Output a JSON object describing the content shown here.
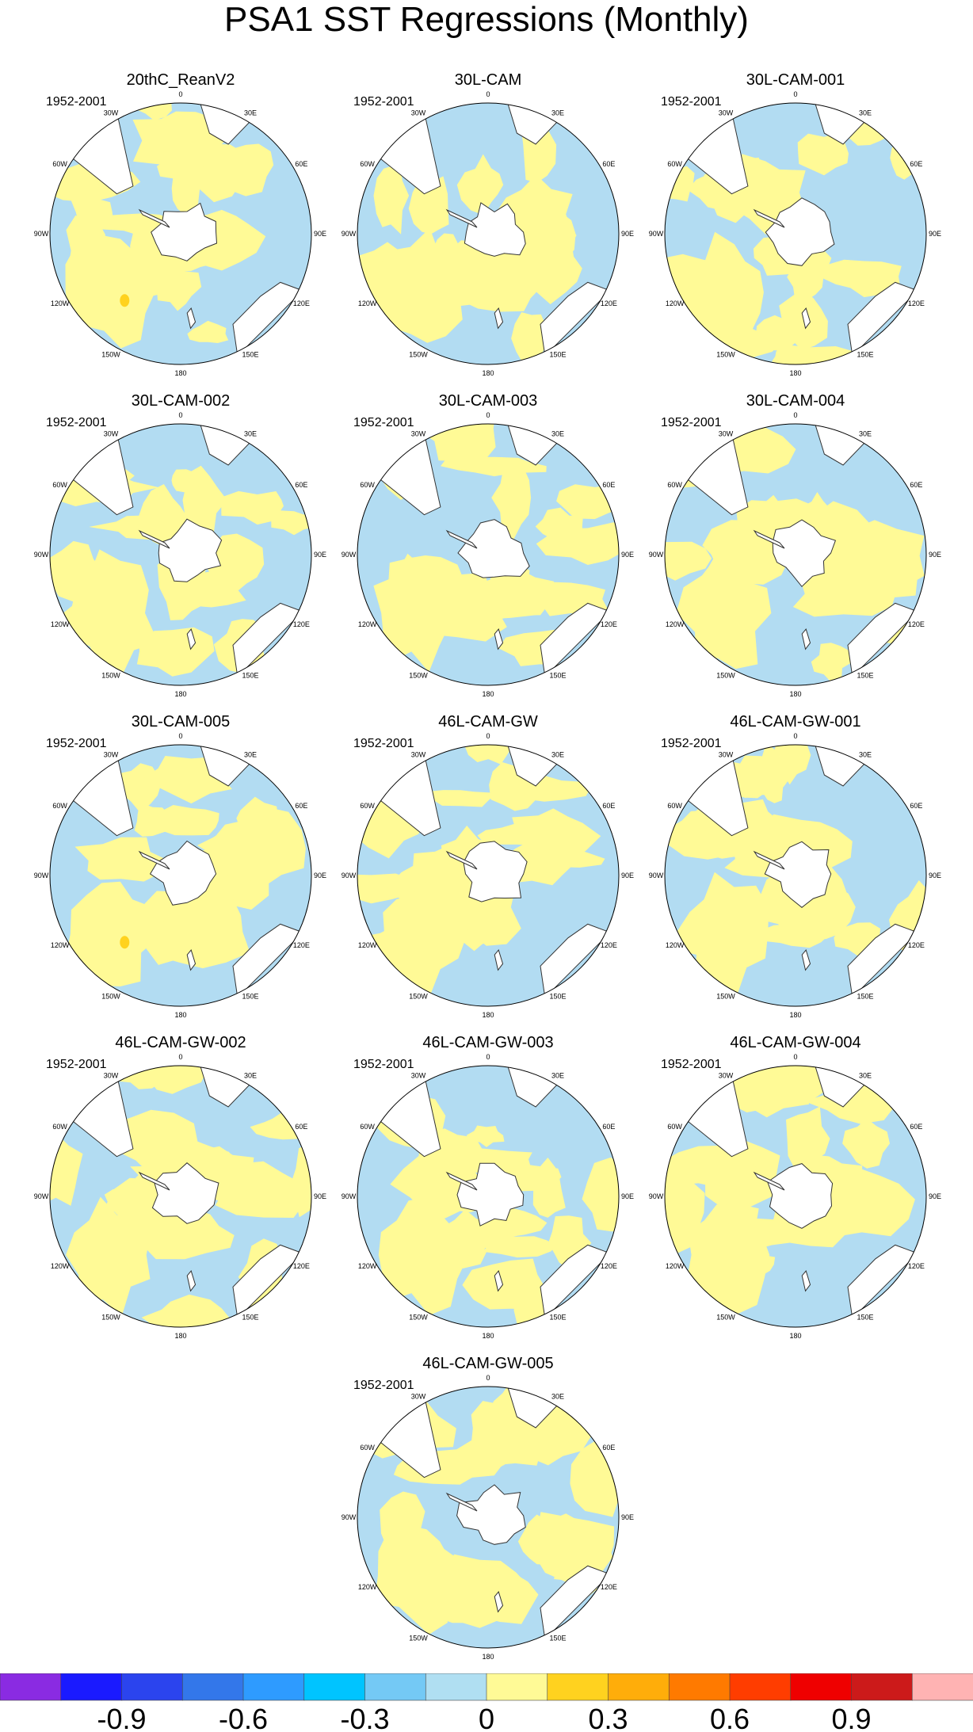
{
  "title": "PSA1 SST Regressions (Monthly)",
  "period": "1952-2001",
  "lon_labels": [
    "0",
    "30E",
    "60E",
    "90E",
    "120E",
    "150E",
    "180",
    "150W",
    "120W",
    "90W",
    "60W",
    "30W"
  ],
  "panels": [
    {
      "name": "20thC_ReanV2",
      "period": "1952-2001"
    },
    {
      "name": "30L-CAM",
      "period": "1952-2001"
    },
    {
      "name": "30L-CAM-001",
      "period": "1952-2001"
    },
    {
      "name": "30L-CAM-002",
      "period": "1952-2001"
    },
    {
      "name": "30L-CAM-003",
      "period": "1952-2001"
    },
    {
      "name": "30L-CAM-004",
      "period": "1952-2001"
    },
    {
      "name": "30L-CAM-005",
      "period": "1952-2001"
    },
    {
      "name": "46L-CAM-GW",
      "period": "1952-2001"
    },
    {
      "name": "46L-CAM-GW-001",
      "period": "1952-2001"
    },
    {
      "name": "46L-CAM-GW-002",
      "period": "1952-2001"
    },
    {
      "name": "46L-CAM-GW-003",
      "period": "1952-2001"
    },
    {
      "name": "46L-CAM-GW-004",
      "period": "1952-2001"
    },
    {
      "name": "46L-CAM-GW-005",
      "period": "1952-2001"
    }
  ],
  "colorbar": {
    "colors": [
      "#8a2be2",
      "#1a1aff",
      "#2b44ee",
      "#3377ea",
      "#2e9bff",
      "#00c4ff",
      "#74c9f5",
      "#b0dff2",
      "#fffa96",
      "#ffd21f",
      "#ffad0a",
      "#ff7a00",
      "#ff3d00",
      "#ef0000",
      "#cc1a1a",
      "#ffb3b3"
    ],
    "labels": [
      "-0.9",
      "-0.6",
      "-0.3",
      "0",
      "0.3",
      "0.6",
      "0.9"
    ]
  },
  "chart_data": {
    "type": "heatmap",
    "title": "PSA1 SST Regressions (Monthly)",
    "projection": "south-polar stereographic",
    "legend": "bottom colorbar",
    "series": [
      {
        "name": "20thC_ReanV2"
      },
      {
        "name": "30L-CAM"
      },
      {
        "name": "30L-CAM-001"
      },
      {
        "name": "30L-CAM-002"
      },
      {
        "name": "30L-CAM-003"
      },
      {
        "name": "30L-CAM-004"
      },
      {
        "name": "30L-CAM-005"
      },
      {
        "name": "46L-CAM-GW"
      },
      {
        "name": "46L-CAM-GW-001"
      },
      {
        "name": "46L-CAM-GW-002"
      },
      {
        "name": "46L-CAM-GW-003"
      },
      {
        "name": "46L-CAM-GW-004"
      },
      {
        "name": "46L-CAM-GW-005"
      }
    ],
    "levels": [
      -0.9,
      -0.6,
      -0.3,
      0,
      0.3,
      0.6,
      0.9
    ],
    "dominant_values": {
      "negative": -0.15,
      "positive": 0.15,
      "strong_positive": 0.35
    }
  }
}
